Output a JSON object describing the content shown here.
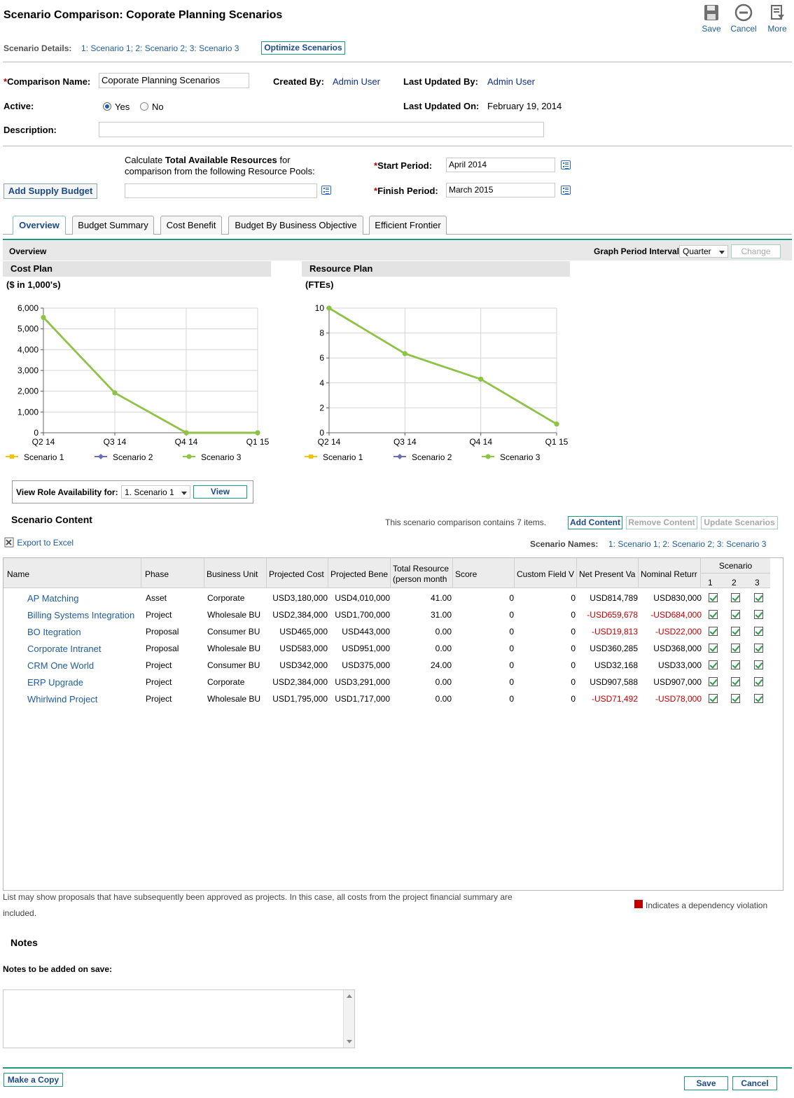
{
  "page": {
    "title": "Scenario Comparison: Coporate Planning Scenarios",
    "toolbar": {
      "save": "Save",
      "cancel": "Cancel",
      "more": "More"
    }
  },
  "scenario_details": {
    "label": "Scenario Details:",
    "links": "1: Scenario 1; 2: Scenario 2; 3: Scenario 3",
    "optimize_button": "Optimize Scenarios"
  },
  "form": {
    "comparison_name_label": "Comparison Name:",
    "comparison_name_value": "Coporate Planning Scenarios",
    "created_by_label": "Created By:",
    "created_by_value": "Admin User",
    "last_updated_by_label": "Last Updated By:",
    "last_updated_by_value": "Admin User",
    "active_label": "Active:",
    "active_yes": "Yes",
    "active_no": "No",
    "active_selected": "Yes",
    "last_updated_on_label": "Last Updated On:",
    "last_updated_on_value": "February 19, 2014",
    "description_label": "Description:",
    "description_value": ""
  },
  "resources": {
    "calc_text_1": "Calculate ",
    "calc_text_bold": "Total Available Resources",
    "calc_text_2": " for",
    "calc_text_3": "comparison from the following Resource Pools:",
    "add_supply_budget": "Add Supply Budget",
    "resource_pool_value": "",
    "start_period_label": "Start Period:",
    "start_period_value": "April 2014",
    "finish_period_label": "Finish Period:",
    "finish_period_value": "March 2015"
  },
  "tabs": [
    "Overview",
    "Budget Summary",
    "Cost Benefit",
    "Budget By Business Objective",
    "Efficient Frontier"
  ],
  "overview": {
    "header": "Overview",
    "graph_period_label": "Graph Period Interval:",
    "graph_period_value": "Quarter",
    "change_button": "Change"
  },
  "colors": {
    "scenario1": "#f5c400",
    "scenario2": "#6a6fb3",
    "scenario3": "#8cc63f",
    "accent": "#1c9b7c"
  },
  "chart_data": [
    {
      "type": "line",
      "title": "Cost Plan",
      "ylabel": "($ in 1,000's)",
      "categories": [
        "Q2 14",
        "Q3 14",
        "Q4 14",
        "Q1 15"
      ],
      "ylim": [
        0,
        6000
      ],
      "yticks": [
        "0",
        "1,000",
        "2,000",
        "3,000",
        "4,000",
        "5,000",
        "6,000"
      ],
      "grid": true,
      "legend": "bottom",
      "series": [
        {
          "name": "Scenario 1",
          "values": [
            5550,
            1920,
            0,
            0
          ]
        },
        {
          "name": "Scenario 2",
          "values": [
            5550,
            1920,
            0,
            0
          ]
        },
        {
          "name": "Scenario 3",
          "values": [
            5550,
            1920,
            0,
            0
          ]
        }
      ]
    },
    {
      "type": "line",
      "title": "Resource Plan",
      "ylabel": "(FTEs)",
      "categories": [
        "Q2 14",
        "Q3 14",
        "Q4 14",
        "Q1 15"
      ],
      "ylim": [
        0,
        10
      ],
      "yticks": [
        "0",
        "2",
        "4",
        "6",
        "8",
        "10"
      ],
      "grid": true,
      "legend": "bottom",
      "series": [
        {
          "name": "Scenario 1",
          "values": [
            10,
            6.35,
            4.3,
            0.7
          ]
        },
        {
          "name": "Scenario 2",
          "values": [
            10,
            6.35,
            4.3,
            0.7
          ]
        },
        {
          "name": "Scenario 3",
          "values": [
            10,
            6.35,
            4.3,
            0.7
          ]
        }
      ]
    }
  ],
  "role_availability": {
    "label": "View Role Availability for:",
    "value": "1. Scenario 1",
    "button": "View"
  },
  "content": {
    "title": "Scenario Content",
    "count_text": "This scenario comparison contains 7 items.",
    "add_content": "Add Content",
    "remove_content": "Remove Content",
    "update_scenarios": "Update Scenarios",
    "export": "Export to Excel",
    "scenario_names_label": "Scenario Names:",
    "scenario_names_links": "1: Scenario 1; 2: Scenario 2; 3: Scenario 3",
    "columns": [
      "Name",
      "Phase",
      "Business Unit",
      "Projected Cost",
      "Projected Bene",
      "Total Resource",
      "(person month",
      "Score",
      "Custom Field V",
      "Net Present Va",
      "Nominal Returr"
    ],
    "scenario_col": "Scenario",
    "scenario_nums": [
      "1",
      "2",
      "3"
    ],
    "rows": [
      {
        "name": "AP Matching",
        "phase": "Asset",
        "bu": "Corporate",
        "cost": "USD3,180,000",
        "bene": "USD4,010,000",
        "res": "41.00",
        "score": "0",
        "custom": "0",
        "npv": "USD814,789",
        "nominal": "USD830,000",
        "neg": false
      },
      {
        "name": "Billing Systems Integration",
        "phase": "Project",
        "bu": "Wholesale BU",
        "cost": "USD2,384,000",
        "bene": "USD1,700,000",
        "res": "31.00",
        "score": "0",
        "custom": "0",
        "npv": "-USD659,678",
        "nominal": "-USD684,000",
        "neg": true
      },
      {
        "name": "BO Itegration",
        "phase": "Proposal",
        "bu": "Consumer BU",
        "cost": "USD465,000",
        "bene": "USD443,000",
        "res": "0.00",
        "score": "0",
        "custom": "0",
        "npv": "-USD19,813",
        "nominal": "-USD22,000",
        "neg": true
      },
      {
        "name": "Corporate Intranet",
        "phase": "Proposal",
        "bu": "Wholesale BU",
        "cost": "USD583,000",
        "bene": "USD951,000",
        "res": "0.00",
        "score": "0",
        "custom": "0",
        "npv": "USD360,285",
        "nominal": "USD368,000",
        "neg": false
      },
      {
        "name": "CRM One World",
        "phase": "Project",
        "bu": "Consumer BU",
        "cost": "USD342,000",
        "bene": "USD375,000",
        "res": "24.00",
        "score": "0",
        "custom": "0",
        "npv": "USD32,168",
        "nominal": "USD33,000",
        "neg": false
      },
      {
        "name": "ERP Upgrade",
        "phase": "Project",
        "bu": "Corporate",
        "cost": "USD2,384,000",
        "bene": "USD3,291,000",
        "res": "0.00",
        "score": "0",
        "custom": "0",
        "npv": "USD907,588",
        "nominal": "USD907,000",
        "neg": false
      },
      {
        "name": "Whirlwind Project",
        "phase": "Project",
        "bu": "Wholesale BU",
        "cost": "USD1,795,000",
        "bene": "USD1,717,000",
        "res": "0.00",
        "score": "0",
        "custom": "0",
        "npv": "-USD71,492",
        "nominal": "-USD78,000",
        "neg": true
      }
    ],
    "footnote_1": "List may show proposals that have subsequently been approved as projects. In this case, all costs from the project financial summary are",
    "footnote_2": "included.",
    "dependency_note": "Indicates a dependency violation"
  },
  "notes": {
    "title": "Notes",
    "label": "Notes to be added on save:",
    "value": ""
  },
  "footer": {
    "make_copy": "Make a Copy",
    "save": "Save",
    "cancel": "Cancel"
  }
}
